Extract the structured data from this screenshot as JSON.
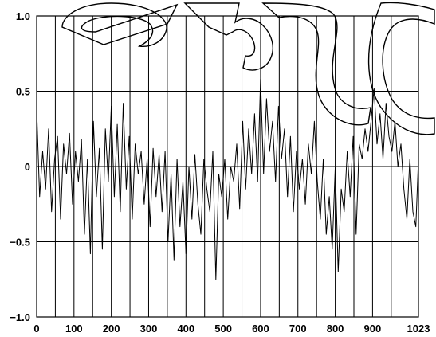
{
  "chart_data": {
    "type": "line",
    "title": "",
    "xlabel": "",
    "ylabel": "",
    "xlim": [
      0,
      1023
    ],
    "ylim": [
      -1.0,
      1.0
    ],
    "grid": true,
    "x_tick_values": [
      0,
      100,
      200,
      300,
      400,
      500,
      600,
      700,
      800,
      900,
      1023
    ],
    "x_tick_labels": [
      "0",
      "100",
      "200",
      "300",
      "400",
      "500",
      "600",
      "700",
      "800",
      "900",
      "1023"
    ],
    "x_minor_grid_step": 50,
    "y_tick_values": [
      1.0,
      0.5,
      0,
      -0.5,
      -1.0
    ],
    "y_tick_labels": [
      "1.0",
      "0.5",
      "0",
      "−0.5",
      "−1.0"
    ],
    "series": [
      {
        "x": [
          0,
          8,
          16,
          24,
          32,
          40,
          48,
          56,
          64,
          72,
          80,
          88,
          96,
          104,
          112,
          120,
          128,
          136,
          144,
          152,
          160,
          168,
          176,
          184,
          192,
          200,
          208,
          216,
          224,
          232,
          240,
          248,
          256,
          264,
          272,
          280,
          288,
          296,
          304,
          312,
          320,
          328,
          336,
          344,
          352,
          360,
          368,
          376,
          384,
          392,
          400,
          408,
          416,
          424,
          432,
          440,
          448,
          456,
          464,
          472,
          480,
          488,
          496,
          504,
          512,
          520,
          528,
          536,
          544,
          552,
          560,
          568,
          576,
          584,
          592,
          600,
          608,
          616,
          624,
          632,
          640,
          648,
          656,
          664,
          672,
          680,
          688,
          696,
          704,
          712,
          720,
          728,
          736,
          744,
          752,
          760,
          768,
          776,
          784,
          792,
          800,
          808,
          816,
          824,
          832,
          840,
          848,
          856,
          864,
          872,
          880,
          888,
          896,
          904,
          912,
          920,
          928,
          936,
          944,
          952,
          960,
          968,
          976,
          984,
          992,
          1000,
          1008,
          1016,
          1023
        ],
        "values": [
          0.38,
          -0.2,
          0.1,
          -0.15,
          0.25,
          -0.3,
          0.05,
          0.2,
          -0.35,
          0.15,
          -0.05,
          0.22,
          -0.25,
          0.1,
          -0.1,
          0.18,
          -0.45,
          0.05,
          -0.58,
          0.3,
          -0.2,
          0.12,
          -0.55,
          0.25,
          -0.1,
          0.4,
          -0.2,
          0.28,
          -0.3,
          0.42,
          -0.15,
          0.2,
          -0.35,
          0.15,
          -0.05,
          0.1,
          -0.25,
          0.05,
          -0.4,
          0.12,
          -0.2,
          0.08,
          -0.3,
          0.1,
          -0.5,
          -0.05,
          -0.62,
          0.05,
          -0.4,
          -0.1,
          -0.58,
          0.0,
          -0.35,
          0.08,
          -0.25,
          -0.45,
          0.05,
          -0.15,
          -0.3,
          0.1,
          -0.75,
          -0.05,
          -0.2,
          0.05,
          -0.35,
          0.0,
          -0.1,
          0.15,
          -0.28,
          0.3,
          -0.15,
          0.25,
          -0.05,
          0.35,
          -0.1,
          0.58,
          -0.05,
          0.45,
          0.1,
          0.3,
          -0.1,
          0.4,
          0.05,
          0.25,
          -0.2,
          0.2,
          -0.3,
          0.1,
          -0.15,
          0.05,
          -0.25,
          0.15,
          -0.05,
          0.3,
          -0.1,
          -0.35,
          0.05,
          -0.45,
          -0.2,
          -0.55,
          0.0,
          -0.7,
          -0.15,
          -0.3,
          0.1,
          -0.2,
          0.2,
          -0.45,
          0.15,
          0.05,
          0.25,
          0.1,
          0.3,
          0.52,
          0.15,
          0.35,
          0.05,
          0.42,
          0.2,
          0.1,
          0.3,
          0.0,
          0.15,
          -0.15,
          -0.35,
          0.05,
          -0.3,
          -0.4,
          0.05
        ]
      }
    ]
  }
}
